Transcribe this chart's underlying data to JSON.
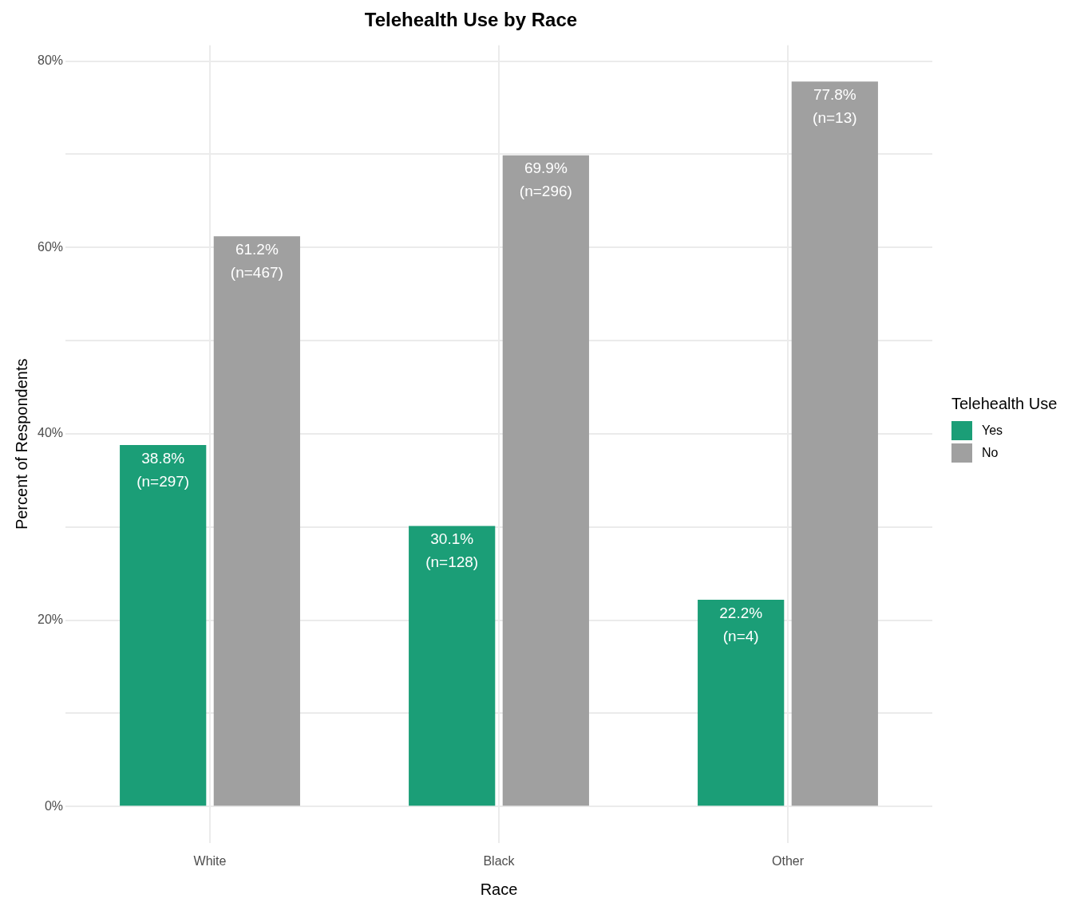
{
  "chart_data": {
    "type": "bar",
    "title": "Telehealth Use by Race",
    "xlabel": "Race",
    "ylabel": "Percent of Respondents",
    "legend_title": "Telehealth Use",
    "categories": [
      "White",
      "Black",
      "Other"
    ],
    "series": [
      {
        "name": "Yes",
        "color": "#1b9e77",
        "values": [
          38.8,
          30.1,
          22.2
        ],
        "value_labels": [
          "38.8%\n(n=297)",
          "30.1%\n(n=128)",
          "22.2%\n(n=4)"
        ]
      },
      {
        "name": "No",
        "color": "#a0a0a0",
        "values": [
          61.2,
          69.9,
          77.8
        ],
        "value_labels": [
          "61.2%\n(n=467)",
          "69.9%\n(n=296)",
          "77.8%\n(n=13)"
        ]
      }
    ],
    "ylim": [
      -3.9,
      81.7
    ],
    "yticks": [
      {
        "value": 0,
        "label": "0%"
      },
      {
        "value": 10,
        "label": null
      },
      {
        "value": 20,
        "label": "20%"
      },
      {
        "value": 30,
        "label": null
      },
      {
        "value": 40,
        "label": "40%"
      },
      {
        "value": 50,
        "label": null
      },
      {
        "value": 60,
        "label": "60%"
      },
      {
        "value": 70,
        "label": null
      },
      {
        "value": 80,
        "label": "80%"
      }
    ],
    "grid": true,
    "legend": "right"
  }
}
